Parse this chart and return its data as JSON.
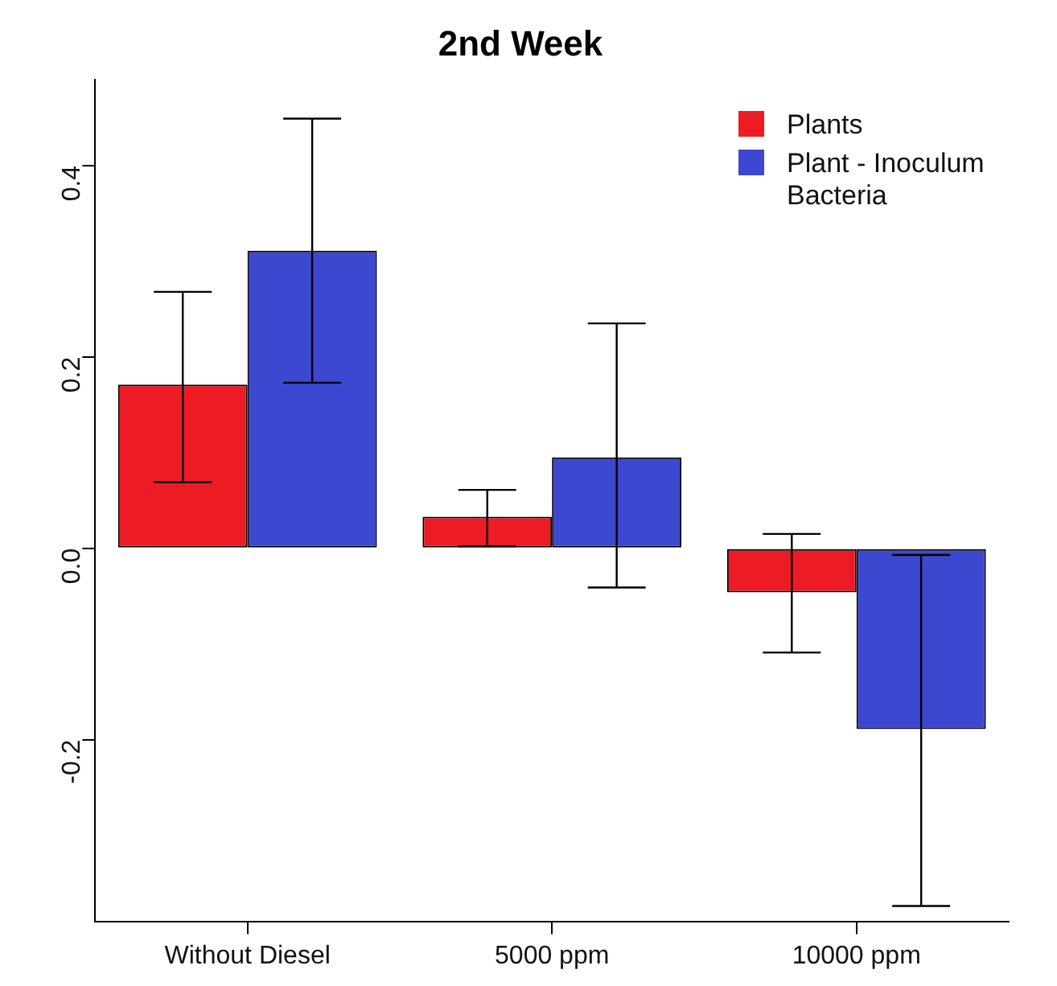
{
  "chart_data": {
    "type": "bar",
    "title": "2nd Week",
    "categories": [
      "Without Diesel",
      "5000 ppm",
      "10000 ppm"
    ],
    "series": [
      {
        "name": "Plants",
        "color": "#ed1c24",
        "values": [
          0.171,
          0.033,
          -0.046
        ],
        "errors": [
          [
            0.069,
            0.268
          ],
          [
            0.002,
            0.061
          ],
          [
            -0.109,
            0.015
          ]
        ]
      },
      {
        "name": "Plant - Inoculum Bacteria",
        "color": "#3c48cf",
        "values": [
          0.311,
          0.095,
          -0.189
        ],
        "errors": [
          [
            0.173,
            0.449
          ],
          [
            -0.041,
            0.235
          ],
          [
            -0.374,
            -0.007
          ]
        ]
      }
    ],
    "ylim": [
      -0.39,
      0.49
    ],
    "yticks": [
      {
        "value": -0.2,
        "label": "-0.2"
      },
      {
        "value": 0,
        "label": "0.0"
      },
      {
        "value": 0.2,
        "label": "0.2"
      },
      {
        "value": 0.4,
        "label": "0.4"
      }
    ],
    "grid": false,
    "legend": "top right"
  }
}
